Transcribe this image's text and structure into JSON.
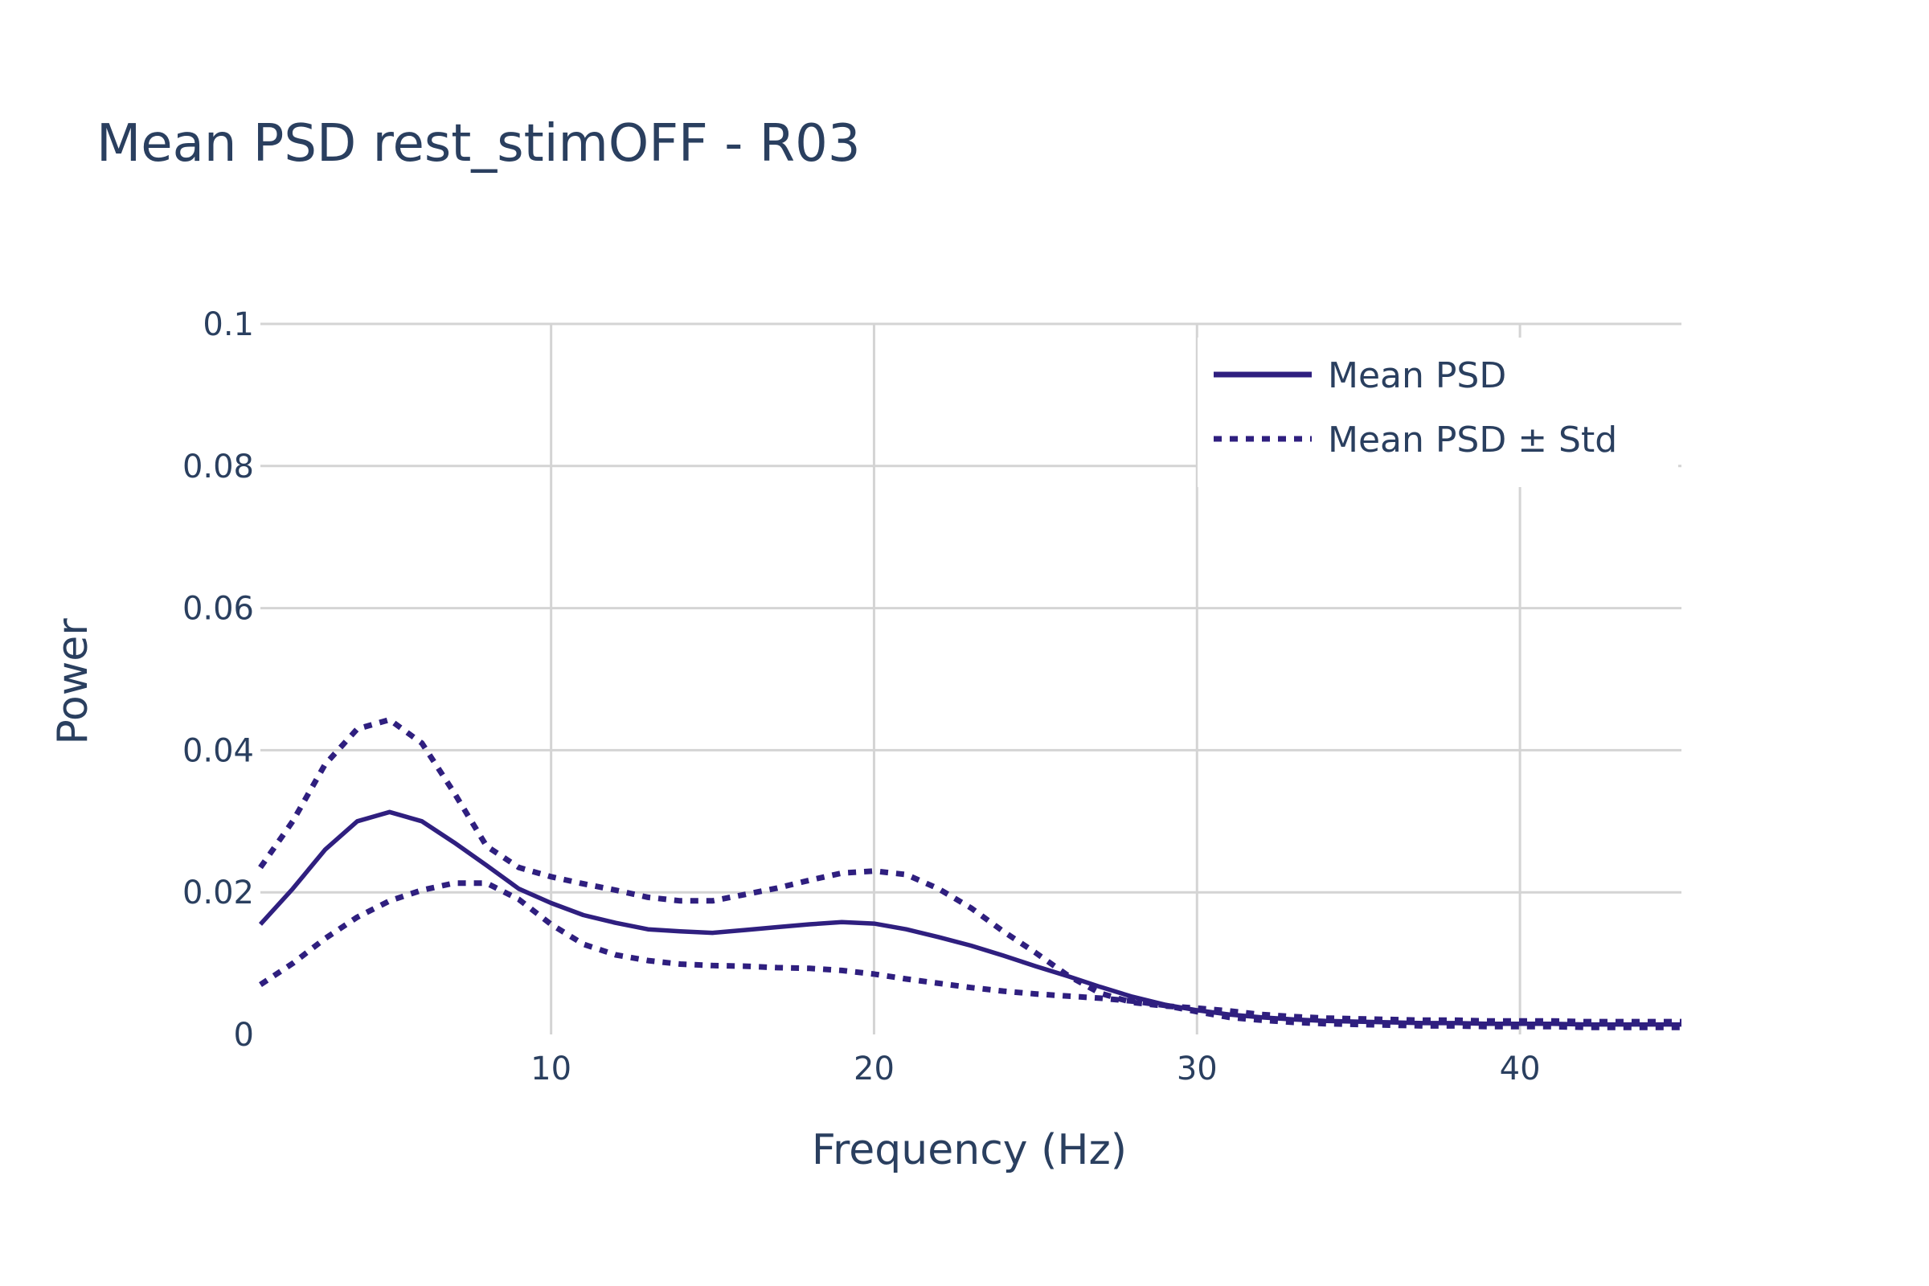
{
  "chart_data": {
    "type": "line",
    "title": "Mean PSD rest_stimOFF - R03",
    "xlabel": "Frequency (Hz)",
    "ylabel": "Power",
    "xlim": [
      1,
      45
    ],
    "ylim": [
      0,
      0.1
    ],
    "x_ticks": [
      10,
      20,
      30,
      40
    ],
    "x_tick_labels": [
      "10",
      "20",
      "30",
      "40"
    ],
    "y_ticks": [
      0,
      0.02,
      0.04,
      0.06,
      0.08,
      0.1
    ],
    "y_tick_labels": [
      "0",
      "0.02",
      "0.04",
      "0.06",
      "0.08",
      "0.1"
    ],
    "grid": true,
    "legend_position": "top-right",
    "legend": [
      "Mean PSD",
      "Mean PSD ± Std"
    ],
    "color": "#2f1f7f",
    "x": [
      1,
      2,
      3,
      4,
      5,
      6,
      7,
      8,
      9,
      10,
      11,
      12,
      13,
      14,
      15,
      16,
      17,
      18,
      19,
      20,
      21,
      22,
      23,
      24,
      25,
      26,
      27,
      28,
      29,
      30,
      31,
      32,
      33,
      34,
      35,
      36,
      37,
      38,
      39,
      40,
      41,
      42,
      43,
      44,
      45
    ],
    "series": [
      {
        "name": "Mean PSD",
        "style": "solid",
        "values": [
          0.0155,
          0.0205,
          0.026,
          0.03,
          0.0313,
          0.03,
          0.027,
          0.0238,
          0.0205,
          0.0185,
          0.0168,
          0.0157,
          0.0148,
          0.0145,
          0.0143,
          0.0147,
          0.0151,
          0.0155,
          0.0158,
          0.0156,
          0.0148,
          0.0137,
          0.0125,
          0.0111,
          0.0096,
          0.0082,
          0.0067,
          0.0053,
          0.0042,
          0.0034,
          0.0028,
          0.0024,
          0.0021,
          0.0019,
          0.0018,
          0.0017,
          0.0016,
          0.0016,
          0.0015,
          0.0015,
          0.0015,
          0.0014,
          0.0014,
          0.0014,
          0.0014
        ]
      },
      {
        "name": "Mean PSD ± Std",
        "style": "dot",
        "values": [
          0.0235,
          0.03,
          0.038,
          0.043,
          0.0443,
          0.041,
          0.034,
          0.0265,
          0.0235,
          0.0222,
          0.0212,
          0.0203,
          0.0193,
          0.0188,
          0.0188,
          0.0197,
          0.0206,
          0.0217,
          0.0227,
          0.023,
          0.0225,
          0.0205,
          0.0178,
          0.0145,
          0.0115,
          0.0083,
          0.0058,
          0.0045,
          0.004,
          0.0037,
          0.0033,
          0.0028,
          0.0025,
          0.0023,
          0.0022,
          0.0021,
          0.002,
          0.002,
          0.0019,
          0.0019,
          0.0019,
          0.0018,
          0.0018,
          0.0018,
          0.0018
        ]
      },
      {
        "name": "Mean PSD ± Std",
        "style": "dot",
        "values": [
          0.007,
          0.01,
          0.0135,
          0.0165,
          0.0188,
          0.0203,
          0.0213,
          0.0213,
          0.019,
          0.0155,
          0.0127,
          0.0112,
          0.0104,
          0.0099,
          0.0097,
          0.0096,
          0.0094,
          0.0093,
          0.009,
          0.0085,
          0.0078,
          0.0072,
          0.0066,
          0.0061,
          0.0057,
          0.0054,
          0.0051,
          0.0047,
          0.0041,
          0.0032,
          0.0024,
          0.002,
          0.0017,
          0.0015,
          0.0014,
          0.0013,
          0.0012,
          0.0012,
          0.0011,
          0.0011,
          0.0011,
          0.001,
          0.001,
          0.001,
          0.001
        ]
      }
    ]
  }
}
